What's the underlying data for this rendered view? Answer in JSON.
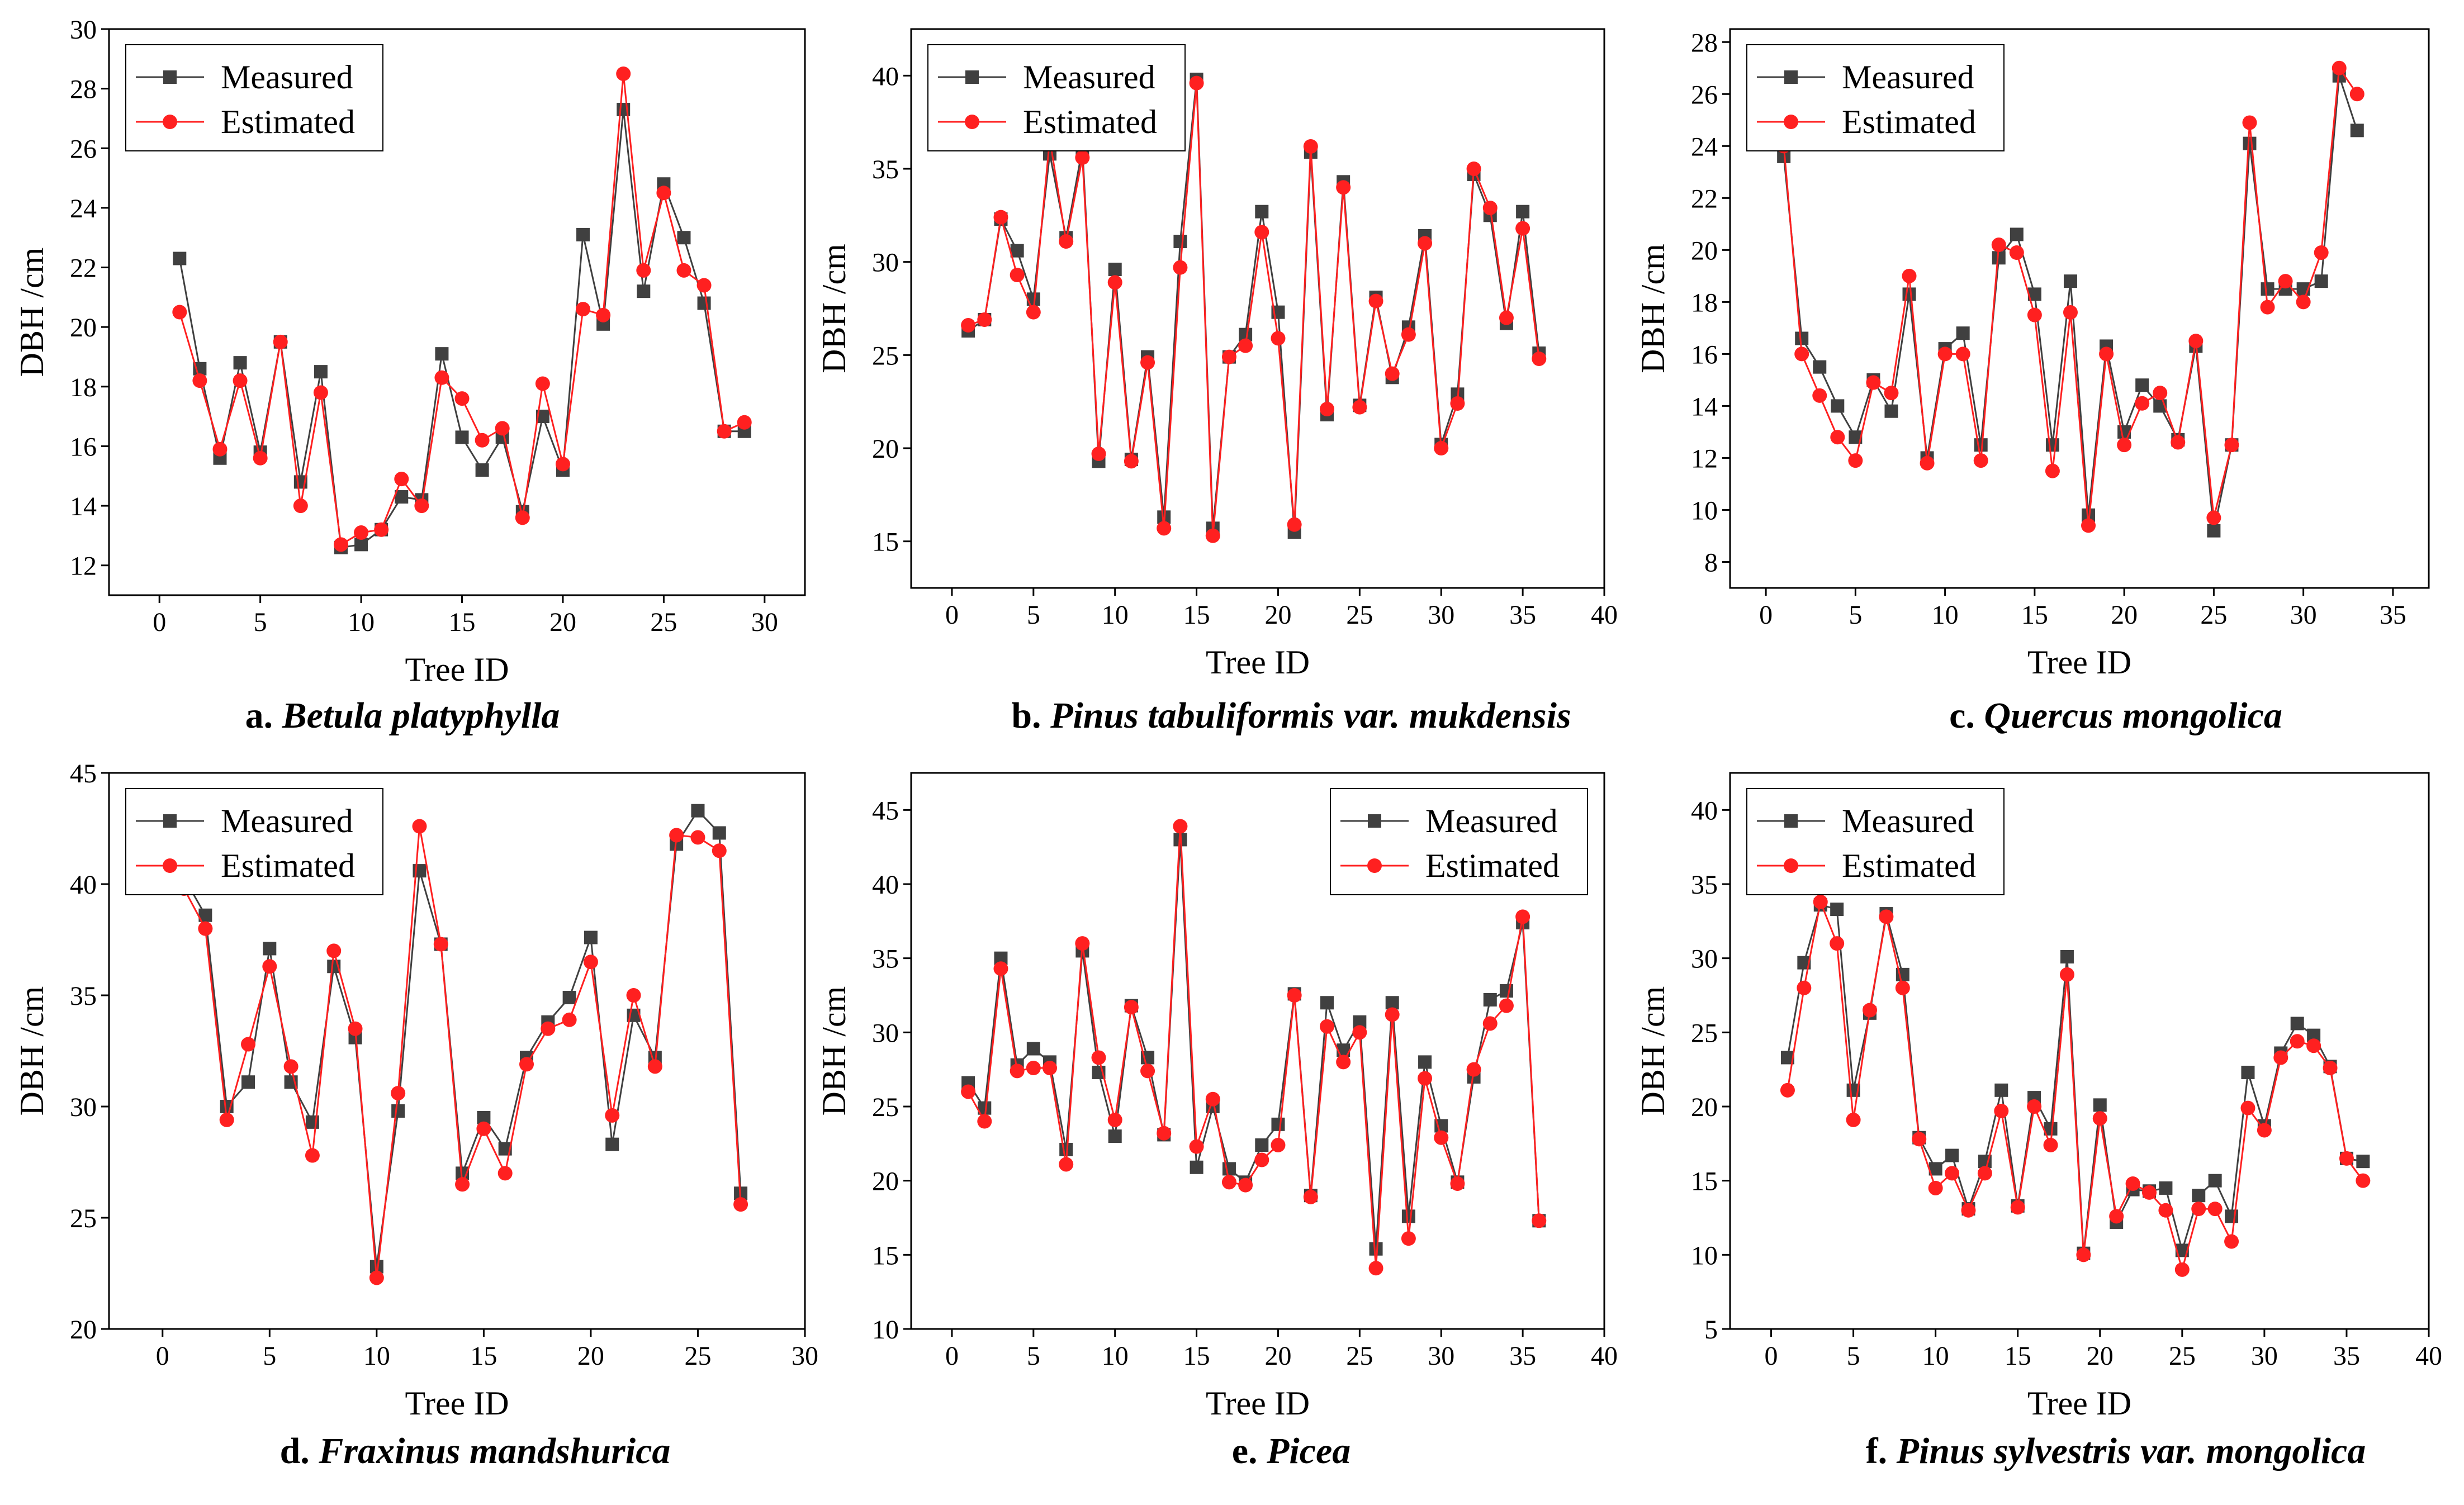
{
  "legend": {
    "measured": "Measured",
    "estimated": "Estimated"
  },
  "colors": {
    "measured": "#404040",
    "estimated": "#ff2020"
  },
  "chart_data": [
    {
      "type": "line",
      "caption_letter": "a. ",
      "caption_species": "Betula platyphylla",
      "xlabel": "Tree ID",
      "ylabel": "DBH /cm",
      "xlim": [
        -2.5,
        32
      ],
      "ylim": [
        11,
        30
      ],
      "xticks": [
        0,
        5,
        10,
        15,
        20,
        25,
        30
      ],
      "yticks": [
        12,
        14,
        16,
        18,
        20,
        22,
        24,
        26,
        28,
        30
      ],
      "legend_position": "top-left",
      "series": [
        {
          "name": "Measured",
          "x": [
            1,
            2,
            3,
            4,
            5,
            6,
            7,
            8,
            9,
            10,
            11,
            12,
            13,
            14,
            15,
            16,
            17,
            18,
            19,
            20,
            21,
            22,
            23,
            24,
            25,
            26,
            27,
            28,
            29
          ],
          "values": [
            22.3,
            18.6,
            15.6,
            18.8,
            15.8,
            19.5,
            14.8,
            18.5,
            12.6,
            12.7,
            13.2,
            14.3,
            14.2,
            19.1,
            16.3,
            15.2,
            16.3,
            13.8,
            17.0,
            15.2,
            23.1,
            20.1,
            27.3,
            21.2,
            24.8,
            23.0,
            20.8,
            16.5,
            16.5
          ]
        },
        {
          "name": "Estimated",
          "x": [
            1,
            2,
            3,
            4,
            5,
            6,
            7,
            8,
            9,
            10,
            11,
            12,
            13,
            14,
            15,
            16,
            17,
            18,
            19,
            20,
            21,
            22,
            23,
            24,
            25,
            26,
            27,
            28,
            29
          ],
          "values": [
            20.5,
            18.2,
            15.9,
            18.2,
            15.6,
            19.5,
            14.0,
            17.8,
            12.7,
            13.1,
            13.2,
            14.9,
            14.0,
            18.3,
            17.6,
            16.2,
            16.6,
            13.6,
            18.1,
            15.4,
            20.6,
            20.4,
            28.5,
            21.9,
            24.5,
            21.9,
            21.4,
            16.5,
            16.8
          ]
        }
      ]
    },
    {
      "type": "line",
      "caption_letter": "b. ",
      "caption_species": "Pinus tabuliformis var. mukdensis",
      "xlabel": "Tree ID",
      "ylabel": "DBH /cm",
      "xlim": [
        -2.5,
        40
      ],
      "ylim": [
        12.5,
        42.5
      ],
      "xticks": [
        0,
        5,
        10,
        15,
        20,
        25,
        30,
        35,
        40
      ],
      "yticks": [
        15,
        20,
        25,
        30,
        35,
        40
      ],
      "legend_position": "top-left",
      "series": [
        {
          "name": "Measured",
          "x": [
            1,
            2,
            3,
            4,
            5,
            6,
            7,
            8,
            9,
            10,
            11,
            12,
            13,
            14,
            15,
            16,
            17,
            18,
            19,
            20,
            21,
            22,
            23,
            24,
            25,
            26,
            27,
            28,
            29,
            30,
            31,
            32,
            33,
            34,
            35,
            36
          ],
          "values": [
            26.3,
            26.9,
            32.3,
            30.6,
            28.0,
            35.8,
            31.3,
            36.1,
            19.3,
            29.6,
            19.4,
            24.9,
            16.3,
            31.1,
            39.8,
            15.7,
            24.9,
            26.1,
            32.7,
            27.3,
            15.5,
            35.9,
            21.8,
            34.3,
            22.3,
            28.1,
            23.8,
            26.5,
            31.4,
            20.2,
            22.9,
            34.7,
            32.5,
            26.7,
            32.7,
            25.1
          ]
        },
        {
          "name": "Estimated",
          "x": [
            1,
            2,
            3,
            4,
            5,
            6,
            7,
            8,
            9,
            10,
            11,
            12,
            13,
            14,
            15,
            16,
            17,
            18,
            19,
            20,
            21,
            22,
            23,
            24,
            25,
            26,
            27,
            28,
            29,
            30,
            31,
            32,
            33,
            34,
            35,
            36
          ],
          "values": [
            26.6,
            26.9,
            32.4,
            29.3,
            27.3,
            36.6,
            31.1,
            35.6,
            19.7,
            28.9,
            19.3,
            24.6,
            15.7,
            29.7,
            39.6,
            15.3,
            24.9,
            25.5,
            31.6,
            25.9,
            15.9,
            36.2,
            22.1,
            34.0,
            22.2,
            27.9,
            24.0,
            26.1,
            31.0,
            20.0,
            22.4,
            35.0,
            32.9,
            27.0,
            31.8,
            24.8
          ]
        }
      ]
    },
    {
      "type": "line",
      "caption_letter": "c. ",
      "caption_species": "Quercus mongolica",
      "xlabel": "Tree ID",
      "ylabel": "DBH /cm",
      "xlim": [
        -2,
        37
      ],
      "ylim": [
        7,
        28.5
      ],
      "xticks": [
        0,
        5,
        10,
        15,
        20,
        25,
        30,
        35
      ],
      "yticks": [
        8,
        10,
        12,
        14,
        16,
        18,
        20,
        22,
        24,
        26,
        28
      ],
      "legend_position": "top-left",
      "series": [
        {
          "name": "Measured",
          "x": [
            1,
            2,
            3,
            4,
            5,
            6,
            7,
            8,
            9,
            10,
            11,
            12,
            13,
            14,
            15,
            16,
            17,
            18,
            19,
            20,
            21,
            22,
            23,
            24,
            25,
            26,
            27,
            28,
            29,
            30,
            31,
            32,
            33
          ],
          "values": [
            23.6,
            16.6,
            15.5,
            14.0,
            12.8,
            15.0,
            13.8,
            18.3,
            12.0,
            16.2,
            16.8,
            12.5,
            19.7,
            20.6,
            18.3,
            12.5,
            18.8,
            9.8,
            16.3,
            13.0,
            14.8,
            14.0,
            12.7,
            16.3,
            9.2,
            12.5,
            24.1,
            18.5,
            18.5,
            18.5,
            18.8,
            26.7,
            24.6
          ]
        },
        {
          "name": "Estimated",
          "x": [
            1,
            2,
            3,
            4,
            5,
            6,
            7,
            8,
            9,
            10,
            11,
            12,
            13,
            14,
            15,
            16,
            17,
            18,
            19,
            20,
            21,
            22,
            23,
            24,
            25,
            26,
            27,
            28,
            29,
            30,
            31,
            32,
            33
          ],
          "values": [
            24.0,
            16.0,
            14.4,
            12.8,
            11.9,
            14.9,
            14.5,
            19.0,
            11.8,
            16.0,
            16.0,
            11.9,
            20.2,
            19.9,
            17.5,
            11.5,
            17.6,
            9.4,
            16.0,
            12.5,
            14.1,
            14.5,
            12.6,
            16.5,
            9.7,
            12.5,
            24.9,
            17.8,
            18.8,
            18.0,
            19.9,
            27.0,
            26.0
          ]
        }
      ]
    },
    {
      "type": "line",
      "caption_letter": "d. ",
      "caption_species": "Fraxinus mandshurica",
      "xlabel": "Tree ID",
      "ylabel": "DBH /cm",
      "xlim": [
        -2.5,
        30
      ],
      "ylim": [
        20,
        45
      ],
      "xticks": [
        0,
        5,
        10,
        15,
        20,
        25,
        30
      ],
      "yticks": [
        20,
        25,
        30,
        35,
        40,
        45
      ],
      "legend_position": "top-left",
      "series": [
        {
          "name": "Measured",
          "x": [
            1,
            2,
            3,
            4,
            5,
            6,
            7,
            8,
            9,
            10,
            11,
            12,
            13,
            14,
            15,
            16,
            17,
            18,
            19,
            20,
            21,
            22,
            23,
            24,
            25,
            26,
            27
          ],
          "values": [
            40.3,
            38.6,
            30.0,
            31.1,
            37.1,
            31.1,
            29.3,
            36.3,
            33.1,
            22.8,
            29.8,
            40.6,
            37.3,
            27.0,
            29.5,
            28.1,
            32.2,
            33.8,
            34.9,
            37.6,
            28.3,
            34.1,
            32.2,
            41.8,
            43.3,
            42.3,
            26.1
          ]
        },
        {
          "name": "Estimated",
          "x": [
            1,
            2,
            3,
            4,
            5,
            6,
            7,
            8,
            9,
            10,
            11,
            12,
            13,
            14,
            15,
            16,
            17,
            18,
            19,
            20,
            21,
            22,
            23,
            24,
            25,
            26,
            27
          ],
          "values": [
            39.8,
            38.0,
            29.4,
            32.8,
            36.3,
            31.8,
            27.8,
            37.0,
            33.5,
            22.3,
            30.6,
            42.6,
            37.3,
            26.5,
            29.0,
            27.0,
            31.9,
            33.5,
            33.9,
            36.5,
            29.6,
            35.0,
            31.8,
            42.2,
            42.1,
            41.5,
            25.6
          ]
        }
      ]
    },
    {
      "type": "line",
      "caption_letter": "e. ",
      "caption_species": "Picea",
      "xlabel": "Tree ID",
      "ylabel": "DBH /cm",
      "xlim": [
        -2.5,
        40
      ],
      "ylim": [
        10,
        47.5
      ],
      "xticks": [
        0,
        5,
        10,
        15,
        20,
        25,
        30,
        35,
        40
      ],
      "yticks": [
        10,
        15,
        20,
        25,
        30,
        35,
        40,
        45
      ],
      "legend_position": "top-right",
      "series": [
        {
          "name": "Measured",
          "x": [
            1,
            2,
            3,
            4,
            5,
            6,
            7,
            8,
            9,
            10,
            11,
            12,
            13,
            14,
            15,
            16,
            17,
            18,
            19,
            20,
            21,
            22,
            23,
            24,
            25,
            26,
            27,
            28,
            29,
            30,
            31,
            32,
            33,
            34,
            35,
            36
          ],
          "values": [
            26.6,
            24.9,
            35.0,
            27.8,
            28.9,
            28.0,
            22.1,
            35.5,
            27.3,
            23.0,
            31.8,
            28.3,
            23.1,
            43.0,
            20.9,
            25.0,
            20.8,
            19.9,
            22.4,
            23.8,
            32.6,
            19.0,
            32.0,
            28.8,
            30.7,
            15.4,
            32.0,
            17.6,
            28.0,
            23.7,
            19.9,
            27.0,
            32.2,
            32.8,
            37.4,
            17.3
          ]
        },
        {
          "name": "Estimated",
          "x": [
            1,
            2,
            3,
            4,
            5,
            6,
            7,
            8,
            9,
            10,
            11,
            12,
            13,
            14,
            15,
            16,
            17,
            18,
            19,
            20,
            21,
            22,
            23,
            24,
            25,
            26,
            27,
            28,
            29,
            30,
            31,
            32,
            33,
            34,
            35,
            36
          ],
          "values": [
            26.0,
            24.0,
            34.3,
            27.4,
            27.6,
            27.6,
            21.1,
            36.0,
            28.3,
            24.1,
            31.7,
            27.4,
            23.2,
            43.9,
            22.3,
            25.5,
            19.9,
            19.7,
            21.4,
            22.4,
            32.5,
            18.9,
            30.4,
            28.0,
            30.0,
            14.1,
            31.2,
            16.1,
            26.9,
            22.9,
            19.8,
            27.5,
            30.6,
            31.8,
            37.8,
            17.3
          ]
        }
      ]
    },
    {
      "type": "line",
      "caption_letter": "f. ",
      "caption_species": "Pinus sylvestris var. mongolica",
      "xlabel": "Tree ID",
      "ylabel": "DBH /cm",
      "xlim": [
        -2.5,
        40
      ],
      "ylim": [
        5,
        42.5
      ],
      "xticks": [
        0,
        5,
        10,
        15,
        20,
        25,
        30,
        35,
        40
      ],
      "yticks": [
        5,
        10,
        15,
        20,
        25,
        30,
        35,
        40
      ],
      "legend_position": "top-left",
      "series": [
        {
          "name": "Measured",
          "x": [
            1,
            2,
            3,
            4,
            5,
            6,
            7,
            8,
            9,
            10,
            11,
            12,
            13,
            14,
            15,
            16,
            17,
            18,
            19,
            20,
            21,
            22,
            23,
            24,
            25,
            26,
            27,
            28,
            29,
            30,
            31,
            32,
            33,
            34,
            35,
            36
          ],
          "values": [
            23.3,
            29.7,
            33.6,
            33.3,
            21.1,
            26.3,
            33.0,
            28.9,
            17.9,
            15.8,
            16.7,
            13.1,
            16.3,
            21.1,
            13.3,
            20.6,
            18.5,
            30.1,
            10.1,
            20.1,
            12.2,
            14.4,
            14.3,
            14.5,
            10.3,
            14.0,
            15.0,
            12.6,
            22.3,
            18.7,
            23.6,
            25.6,
            24.8,
            22.7,
            16.5,
            16.3
          ]
        },
        {
          "name": "Estimated",
          "x": [
            1,
            2,
            3,
            4,
            5,
            6,
            7,
            8,
            9,
            10,
            11,
            12,
            13,
            14,
            15,
            16,
            17,
            18,
            19,
            20,
            21,
            22,
            23,
            24,
            25,
            26,
            27,
            28,
            29,
            30,
            31,
            32,
            33,
            34,
            35,
            36
          ],
          "values": [
            21.1,
            28.0,
            33.8,
            31.0,
            19.1,
            26.5,
            32.8,
            28.0,
            17.8,
            14.5,
            15.5,
            13.0,
            15.5,
            19.7,
            13.2,
            20.0,
            17.4,
            28.9,
            10.0,
            19.2,
            12.6,
            14.8,
            14.2,
            13.0,
            9.0,
            13.1,
            13.1,
            10.9,
            19.9,
            18.4,
            23.3,
            24.4,
            24.1,
            22.6,
            16.5,
            15.0
          ]
        }
      ]
    }
  ]
}
